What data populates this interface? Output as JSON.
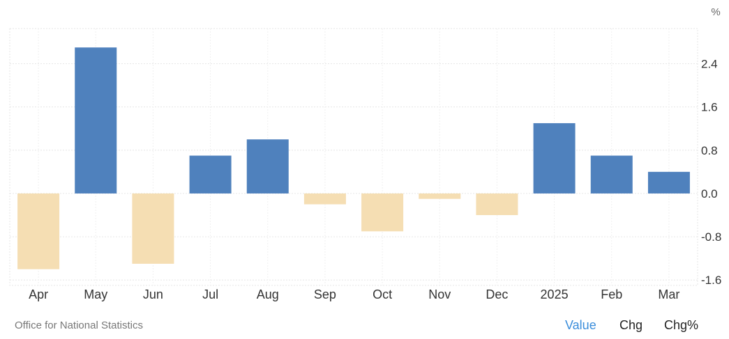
{
  "chart_data": {
    "type": "bar",
    "unit_label": "%",
    "categories": [
      "Apr",
      "May",
      "Jun",
      "Jul",
      "Aug",
      "Sep",
      "Oct",
      "Nov",
      "Dec",
      "2025",
      "Feb",
      "Mar"
    ],
    "values": [
      -1.4,
      2.7,
      -1.3,
      0.7,
      1.0,
      -0.2,
      -0.7,
      -0.1,
      -0.4,
      1.3,
      0.7,
      0.4
    ],
    "y_ticks": [
      -1.6,
      -0.8,
      0.0,
      0.8,
      1.6,
      2.4
    ],
    "y_tick_labels": [
      "-1.6",
      "-0.8",
      "0.0",
      "0.8",
      "1.6",
      "2.4"
    ],
    "ylim": [
      -1.7,
      3.05
    ],
    "colors": {
      "positive": "#4f81bd",
      "negative": "#f5deb3"
    },
    "grid": true
  },
  "source": "Office for National Statistics",
  "tabs": [
    {
      "label": "Value",
      "active": true
    },
    {
      "label": "Chg",
      "active": false
    },
    {
      "label": "Chg%",
      "active": false
    }
  ]
}
